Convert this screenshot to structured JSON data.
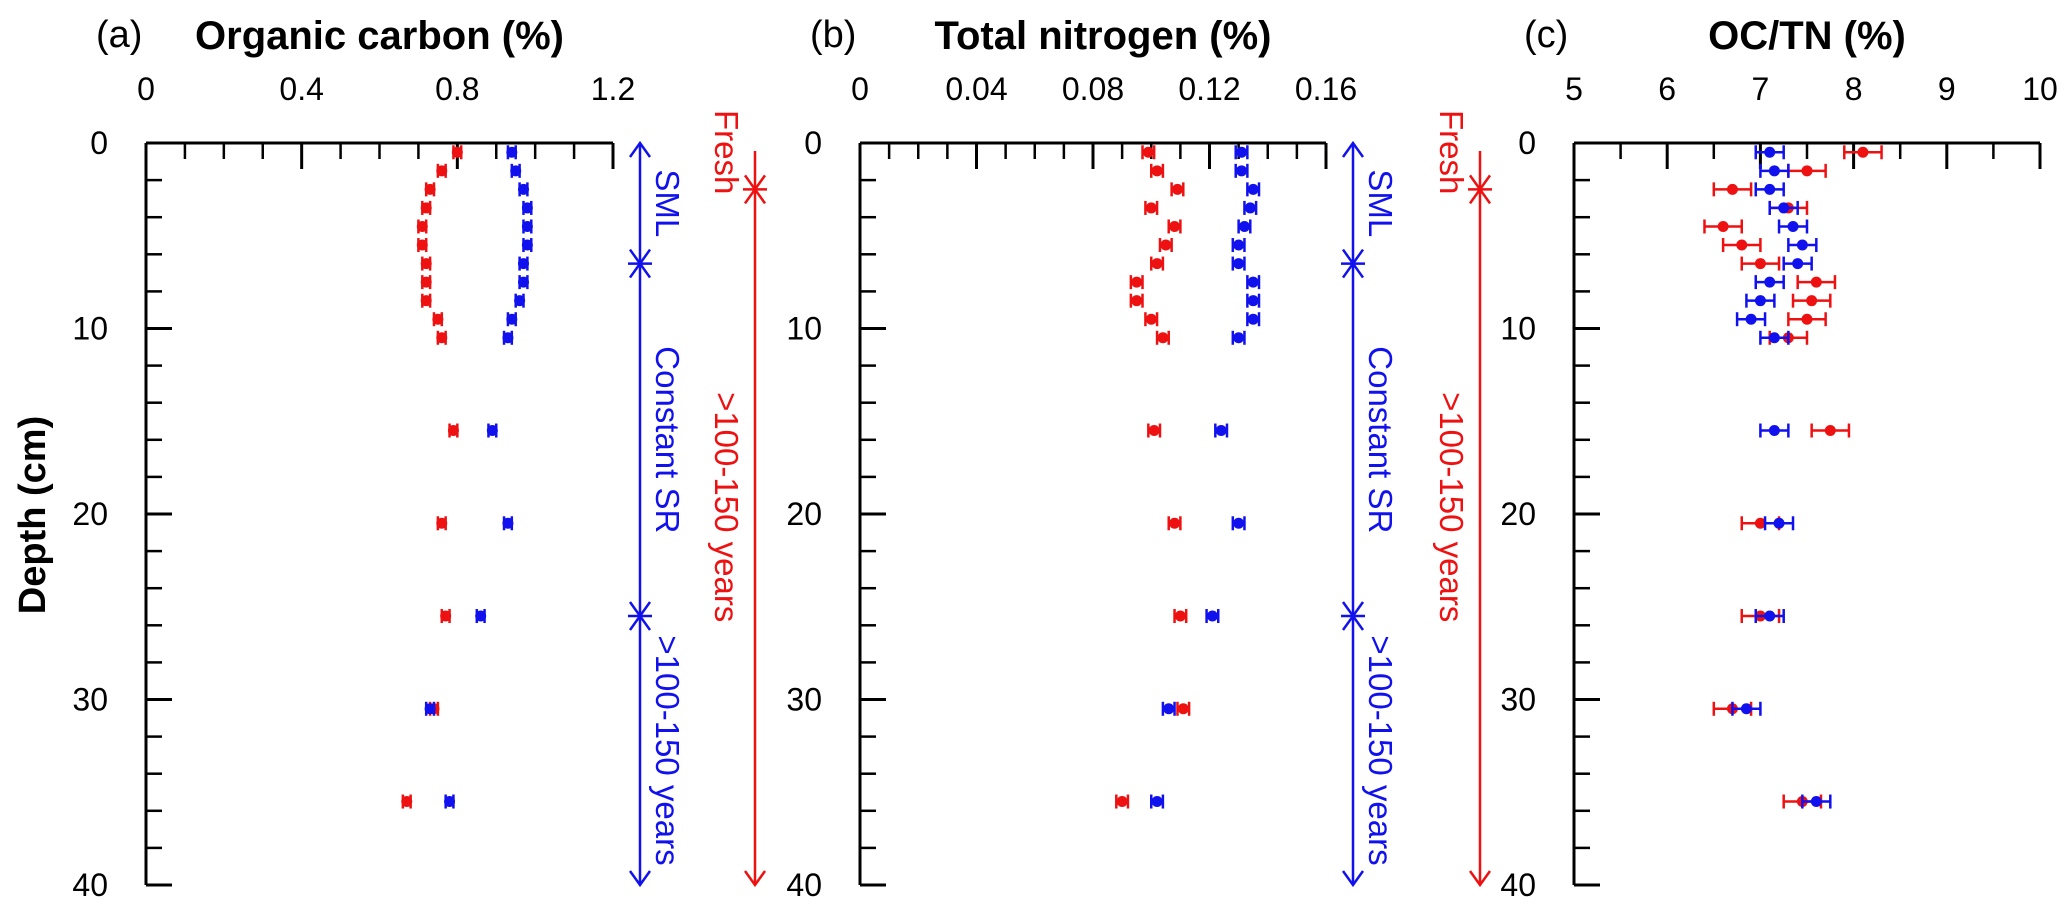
{
  "colors": {
    "red": "#ee1111",
    "blue": "#1111ee",
    "axis": "#000000"
  },
  "ylabel": "Depth (cm)",
  "chart_data": [
    {
      "type": "scatter",
      "panel_label": "(a)",
      "title": "Organic carbon (%)",
      "xlim": [
        0,
        1.2
      ],
      "xticks": [
        "0",
        "0.4",
        "0.8",
        "1.2"
      ],
      "ylim": [
        0,
        40
      ],
      "yticks": [
        "0",
        "10",
        "20",
        "30",
        "40"
      ],
      "grid": false,
      "series": [
        {
          "color": "red",
          "points": [
            {
              "depth": 0.5,
              "x": 0.8,
              "err": 0.01
            },
            {
              "depth": 1.5,
              "x": 0.76,
              "err": 0.01
            },
            {
              "depth": 2.5,
              "x": 0.73,
              "err": 0.01
            },
            {
              "depth": 3.5,
              "x": 0.72,
              "err": 0.01
            },
            {
              "depth": 4.5,
              "x": 0.71,
              "err": 0.01
            },
            {
              "depth": 5.5,
              "x": 0.71,
              "err": 0.01
            },
            {
              "depth": 6.5,
              "x": 0.72,
              "err": 0.01
            },
            {
              "depth": 7.5,
              "x": 0.72,
              "err": 0.01
            },
            {
              "depth": 8.5,
              "x": 0.72,
              "err": 0.01
            },
            {
              "depth": 9.5,
              "x": 0.75,
              "err": 0.01
            },
            {
              "depth": 10.5,
              "x": 0.76,
              "err": 0.01
            },
            {
              "depth": 15.5,
              "x": 0.79,
              "err": 0.01
            },
            {
              "depth": 20.5,
              "x": 0.76,
              "err": 0.01
            },
            {
              "depth": 25.5,
              "x": 0.77,
              "err": 0.01
            },
            {
              "depth": 30.5,
              "x": 0.74,
              "err": 0.01
            },
            {
              "depth": 35.5,
              "x": 0.67,
              "err": 0.01
            }
          ]
        },
        {
          "color": "blue",
          "points": [
            {
              "depth": 0.5,
              "x": 0.94,
              "err": 0.01
            },
            {
              "depth": 1.5,
              "x": 0.95,
              "err": 0.01
            },
            {
              "depth": 2.5,
              "x": 0.97,
              "err": 0.01
            },
            {
              "depth": 3.5,
              "x": 0.98,
              "err": 0.01
            },
            {
              "depth": 4.5,
              "x": 0.98,
              "err": 0.01
            },
            {
              "depth": 5.5,
              "x": 0.98,
              "err": 0.01
            },
            {
              "depth": 6.5,
              "x": 0.97,
              "err": 0.01
            },
            {
              "depth": 7.5,
              "x": 0.97,
              "err": 0.01
            },
            {
              "depth": 8.5,
              "x": 0.96,
              "err": 0.01
            },
            {
              "depth": 9.5,
              "x": 0.94,
              "err": 0.01
            },
            {
              "depth": 10.5,
              "x": 0.93,
              "err": 0.01
            },
            {
              "depth": 15.5,
              "x": 0.89,
              "err": 0.01
            },
            {
              "depth": 20.5,
              "x": 0.93,
              "err": 0.01
            },
            {
              "depth": 25.5,
              "x": 0.86,
              "err": 0.01
            },
            {
              "depth": 30.5,
              "x": 0.73,
              "err": 0.01
            },
            {
              "depth": 35.5,
              "x": 0.78,
              "err": 0.01
            }
          ]
        }
      ]
    },
    {
      "type": "scatter",
      "panel_label": "(b)",
      "title": "Total nitrogen (%)",
      "xlim": [
        0,
        0.16
      ],
      "xticks": [
        "0",
        "0.04",
        "0.08",
        "0.12",
        "0.16"
      ],
      "ylim": [
        0,
        40
      ],
      "grid": false,
      "series": [
        {
          "color": "red",
          "points": [
            {
              "depth": 0.5,
              "x": 0.099,
              "err": 0.002
            },
            {
              "depth": 1.5,
              "x": 0.102,
              "err": 0.002
            },
            {
              "depth": 2.5,
              "x": 0.109,
              "err": 0.002
            },
            {
              "depth": 3.5,
              "x": 0.1,
              "err": 0.002
            },
            {
              "depth": 4.5,
              "x": 0.108,
              "err": 0.002
            },
            {
              "depth": 5.5,
              "x": 0.105,
              "err": 0.002
            },
            {
              "depth": 6.5,
              "x": 0.102,
              "err": 0.002
            },
            {
              "depth": 7.5,
              "x": 0.095,
              "err": 0.002
            },
            {
              "depth": 8.5,
              "x": 0.095,
              "err": 0.002
            },
            {
              "depth": 9.5,
              "x": 0.1,
              "err": 0.002
            },
            {
              "depth": 10.5,
              "x": 0.104,
              "err": 0.002
            },
            {
              "depth": 15.5,
              "x": 0.101,
              "err": 0.002
            },
            {
              "depth": 20.5,
              "x": 0.108,
              "err": 0.002
            },
            {
              "depth": 25.5,
              "x": 0.11,
              "err": 0.002
            },
            {
              "depth": 30.5,
              "x": 0.111,
              "err": 0.002
            },
            {
              "depth": 35.5,
              "x": 0.09,
              "err": 0.002
            }
          ]
        },
        {
          "color": "blue",
          "points": [
            {
              "depth": 0.5,
              "x": 0.131,
              "err": 0.002
            },
            {
              "depth": 1.5,
              "x": 0.131,
              "err": 0.002
            },
            {
              "depth": 2.5,
              "x": 0.135,
              "err": 0.002
            },
            {
              "depth": 3.5,
              "x": 0.134,
              "err": 0.002
            },
            {
              "depth": 4.5,
              "x": 0.132,
              "err": 0.002
            },
            {
              "depth": 5.5,
              "x": 0.13,
              "err": 0.002
            },
            {
              "depth": 6.5,
              "x": 0.13,
              "err": 0.002
            },
            {
              "depth": 7.5,
              "x": 0.135,
              "err": 0.002
            },
            {
              "depth": 8.5,
              "x": 0.135,
              "err": 0.002
            },
            {
              "depth": 9.5,
              "x": 0.135,
              "err": 0.002
            },
            {
              "depth": 10.5,
              "x": 0.13,
              "err": 0.002
            },
            {
              "depth": 15.5,
              "x": 0.124,
              "err": 0.002
            },
            {
              "depth": 20.5,
              "x": 0.13,
              "err": 0.002
            },
            {
              "depth": 25.5,
              "x": 0.121,
              "err": 0.002
            },
            {
              "depth": 30.5,
              "x": 0.106,
              "err": 0.002
            },
            {
              "depth": 35.5,
              "x": 0.102,
              "err": 0.002
            }
          ]
        }
      ]
    },
    {
      "type": "scatter",
      "panel_label": "(c)",
      "title": "OC/TN (%)",
      "xlim": [
        5,
        10
      ],
      "xticks": [
        "5",
        "6",
        "7",
        "8",
        "9",
        "10"
      ],
      "ylim": [
        0,
        40
      ],
      "grid": false,
      "series": [
        {
          "color": "red",
          "points": [
            {
              "depth": 0.5,
              "x": 8.1,
              "err": 0.2
            },
            {
              "depth": 1.5,
              "x": 7.5,
              "err": 0.2
            },
            {
              "depth": 2.5,
              "x": 6.7,
              "err": 0.2
            },
            {
              "depth": 3.5,
              "x": 7.3,
              "err": 0.2
            },
            {
              "depth": 4.5,
              "x": 6.6,
              "err": 0.2
            },
            {
              "depth": 5.5,
              "x": 6.8,
              "err": 0.2
            },
            {
              "depth": 6.5,
              "x": 7.0,
              "err": 0.2
            },
            {
              "depth": 7.5,
              "x": 7.6,
              "err": 0.2
            },
            {
              "depth": 8.5,
              "x": 7.55,
              "err": 0.2
            },
            {
              "depth": 9.5,
              "x": 7.5,
              "err": 0.2
            },
            {
              "depth": 10.5,
              "x": 7.3,
              "err": 0.2
            },
            {
              "depth": 15.5,
              "x": 7.75,
              "err": 0.2
            },
            {
              "depth": 20.5,
              "x": 7.0,
              "err": 0.2
            },
            {
              "depth": 25.5,
              "x": 7.0,
              "err": 0.2
            },
            {
              "depth": 30.5,
              "x": 6.7,
              "err": 0.2
            },
            {
              "depth": 35.5,
              "x": 7.45,
              "err": 0.2
            }
          ]
        },
        {
          "color": "blue",
          "points": [
            {
              "depth": 0.5,
              "x": 7.1,
              "err": 0.15
            },
            {
              "depth": 1.5,
              "x": 7.15,
              "err": 0.15
            },
            {
              "depth": 2.5,
              "x": 7.1,
              "err": 0.15
            },
            {
              "depth": 3.5,
              "x": 7.25,
              "err": 0.15
            },
            {
              "depth": 4.5,
              "x": 7.35,
              "err": 0.15
            },
            {
              "depth": 5.5,
              "x": 7.45,
              "err": 0.15
            },
            {
              "depth": 6.5,
              "x": 7.4,
              "err": 0.15
            },
            {
              "depth": 7.5,
              "x": 7.1,
              "err": 0.15
            },
            {
              "depth": 8.5,
              "x": 7.0,
              "err": 0.15
            },
            {
              "depth": 9.5,
              "x": 6.9,
              "err": 0.15
            },
            {
              "depth": 10.5,
              "x": 7.15,
              "err": 0.15
            },
            {
              "depth": 15.5,
              "x": 7.15,
              "err": 0.15
            },
            {
              "depth": 20.5,
              "x": 7.2,
              "err": 0.15
            },
            {
              "depth": 25.5,
              "x": 7.1,
              "err": 0.15
            },
            {
              "depth": 30.5,
              "x": 6.85,
              "err": 0.15
            },
            {
              "depth": 35.5,
              "x": 7.6,
              "err": 0.15
            }
          ]
        }
      ]
    }
  ],
  "annotations": [
    {
      "color": "blue",
      "labels": [
        {
          "text": "SML",
          "from": 0,
          "to": 6.5
        },
        {
          "text": "Constant SR",
          "from": 6.5,
          "to": 25.5
        },
        {
          "text": ">100-150 years",
          "from": 25.5,
          "to": 40
        }
      ]
    },
    {
      "color": "red",
      "labels": [
        {
          "text": "Fresh",
          "from": 0,
          "to": 2.5
        },
        {
          "text": ">100-150 years",
          "from": 2.5,
          "to": 40
        }
      ]
    }
  ]
}
